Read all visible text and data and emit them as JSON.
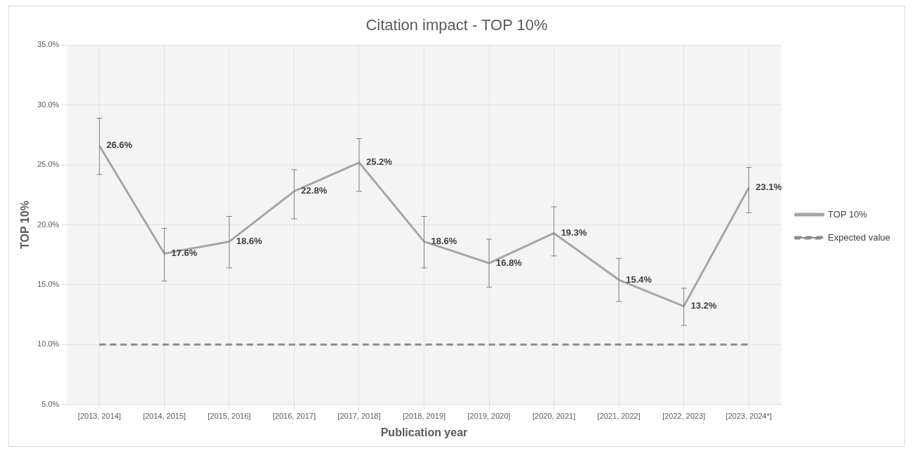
{
  "chart_data": {
    "type": "line",
    "title": "Citation impact - TOP 10%",
    "xlabel": "Publication year",
    "ylabel": "TOP 10%",
    "categories": [
      "[2013, 2014]",
      "[2014, 2015]",
      "[2015, 2016]",
      "[2016, 2017]",
      "[2017, 2018]",
      "[2018, 2019]",
      "[2019, 2020]",
      "[2020, 2021]",
      "[2021, 2022]",
      "[2022, 2023]",
      "[2023, 2024*]"
    ],
    "series": [
      {
        "name": "TOP 10%",
        "color": "#a6a6a6",
        "values": [
          26.6,
          17.6,
          18.6,
          22.8,
          25.2,
          18.6,
          16.8,
          19.3,
          15.4,
          13.2,
          23.1
        ],
        "value_labels": [
          "26.6%",
          "17.6%",
          "18.6%",
          "22.8%",
          "25.2%",
          "18.6%",
          "16.8%",
          "19.3%",
          "15.4%",
          "13.2%",
          "23.1%"
        ],
        "errors": [
          [
            24.2,
            28.9
          ],
          [
            15.3,
            19.7
          ],
          [
            16.4,
            20.7
          ],
          [
            20.5,
            24.6
          ],
          [
            22.8,
            27.2
          ],
          [
            16.4,
            20.7
          ],
          [
            14.8,
            18.8
          ],
          [
            17.4,
            21.5
          ],
          [
            13.6,
            17.2
          ],
          [
            11.6,
            14.7
          ],
          [
            21.0,
            24.8
          ]
        ]
      },
      {
        "name": "Expected value",
        "color": "#8c8c8c",
        "line_style": "dashed",
        "values": [
          10,
          10,
          10,
          10,
          10,
          10,
          10,
          10,
          10,
          10,
          10
        ]
      }
    ],
    "ylim": [
      5,
      35
    ],
    "yticks": [
      {
        "value": 5,
        "label": "5.0%"
      },
      {
        "value": 10,
        "label": "10.0%"
      },
      {
        "value": 15,
        "label": "15.0%"
      },
      {
        "value": 20,
        "label": "20.0%"
      },
      {
        "value": 25,
        "label": "25.0%"
      },
      {
        "value": 30,
        "label": "30.0%"
      },
      {
        "value": 35,
        "label": "35.0%"
      }
    ],
    "grid": true,
    "legend": "right",
    "marker": "none"
  }
}
